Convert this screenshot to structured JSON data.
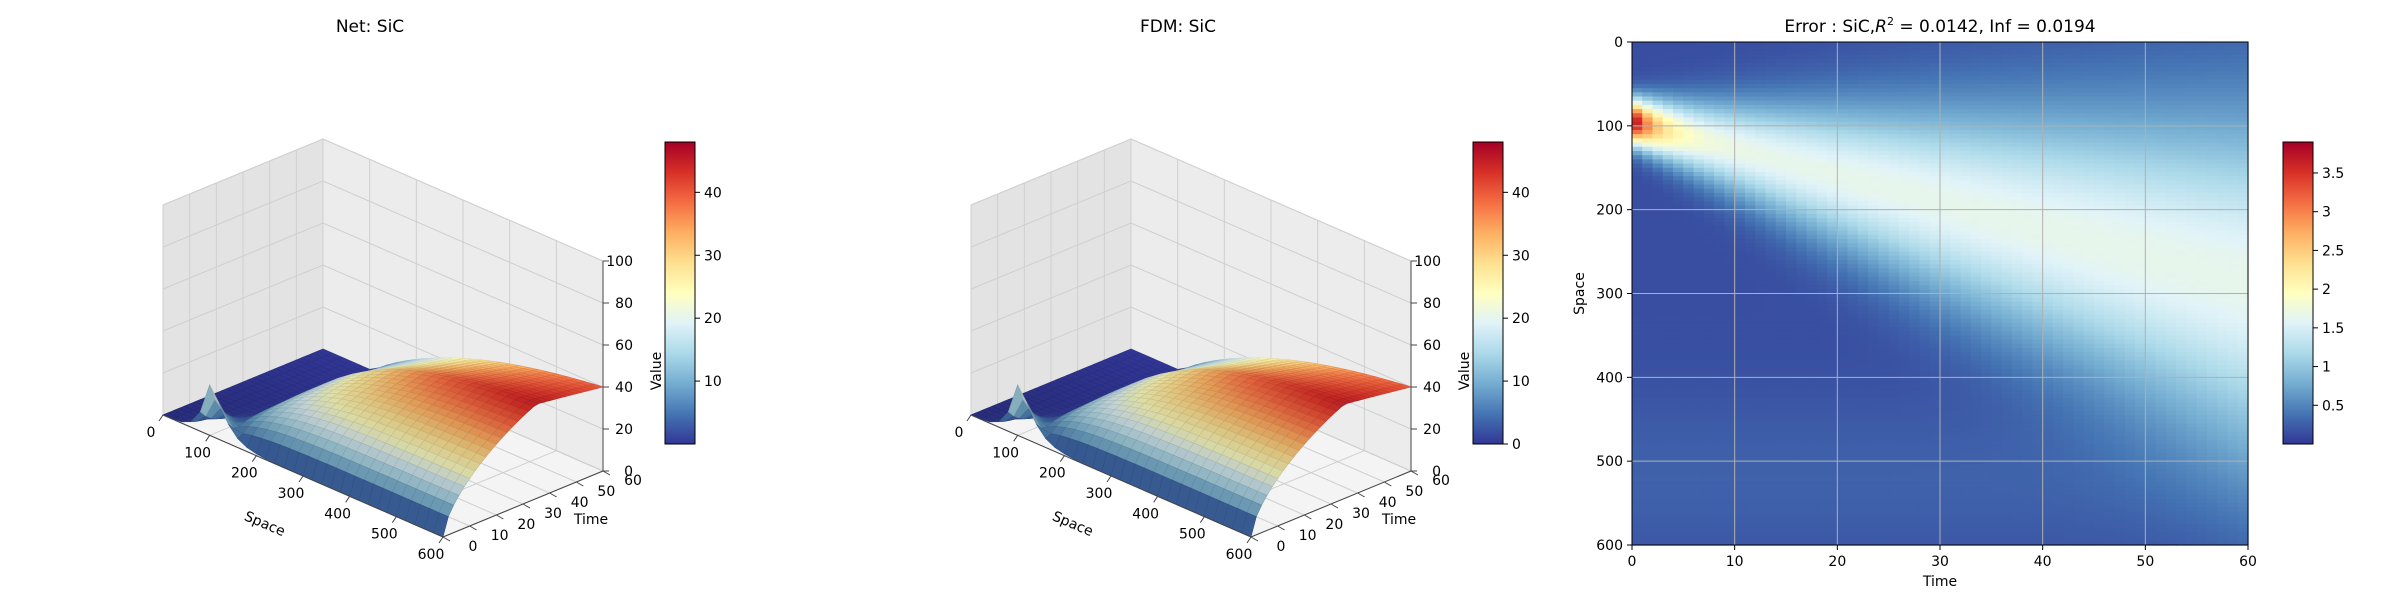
{
  "chart_data": [
    {
      "type": "surface3d",
      "title": "Net: SiC",
      "xlabel": "Space",
      "ylabel": "Time",
      "zlabel": "Value",
      "x_ticks": [
        0,
        100,
        200,
        300,
        400,
        500,
        600
      ],
      "y_ticks": [
        0,
        10,
        20,
        30,
        40,
        50,
        60
      ],
      "z_ticks": [
        0,
        20,
        40,
        60,
        80,
        100
      ],
      "xlim": [
        0,
        600
      ],
      "ylim": [
        0,
        60
      ],
      "zlim": [
        0,
        100
      ],
      "colormap": "RdYlBu_r",
      "colorbar": {
        "ticks": [
          10,
          20,
          30,
          40
        ],
        "range": [
          0,
          48
        ]
      },
      "surface": {
        "description_values": {
          "max_value": 48,
          "min_value": 0,
          "peak_space_at_t0": 100,
          "value_far_field_late_time": 48
        }
      }
    },
    {
      "type": "surface3d",
      "title": "FDM: SiC",
      "xlabel": "Space",
      "ylabel": "Time",
      "zlabel": "Value",
      "x_ticks": [
        0,
        100,
        200,
        300,
        400,
        500,
        600
      ],
      "y_ticks": [
        0,
        10,
        20,
        30,
        40,
        50,
        60
      ],
      "z_ticks": [
        0,
        20,
        40,
        60,
        80,
        100
      ],
      "xlim": [
        0,
        600
      ],
      "ylim": [
        0,
        60
      ],
      "zlim": [
        0,
        100
      ],
      "colormap": "RdYlBu_r",
      "colorbar": {
        "ticks": [
          0,
          10,
          20,
          30,
          40
        ],
        "range": [
          0,
          48
        ]
      },
      "surface": {
        "description_values": {
          "max_value": 48,
          "min_value": 0,
          "peak_space_at_t0": 100,
          "value_far_field_late_time": 48
        }
      }
    },
    {
      "type": "heatmap",
      "title_prefix": "Error : SiC,",
      "title_r": "R",
      "title_sup": "2",
      "title_suffix": " = 0.0142, Inf = 0.0194",
      "xlabel": "Time",
      "ylabel": "Space",
      "x_ticks": [
        0,
        10,
        20,
        30,
        40,
        50,
        60
      ],
      "y_ticks": [
        0,
        100,
        200,
        300,
        400,
        500,
        600
      ],
      "xlim": [
        0,
        60
      ],
      "ylim": [
        600,
        0
      ],
      "grid": true,
      "colormap": "RdYlBu_r",
      "colorbar": {
        "ticks": [
          0.5,
          1.0,
          1.5,
          2.0,
          2.5,
          3.0,
          3.5
        ],
        "range": [
          0.0,
          3.9
        ]
      },
      "max_error": 3.9,
      "max_error_location": {
        "time": 1,
        "space": 85
      }
    }
  ]
}
